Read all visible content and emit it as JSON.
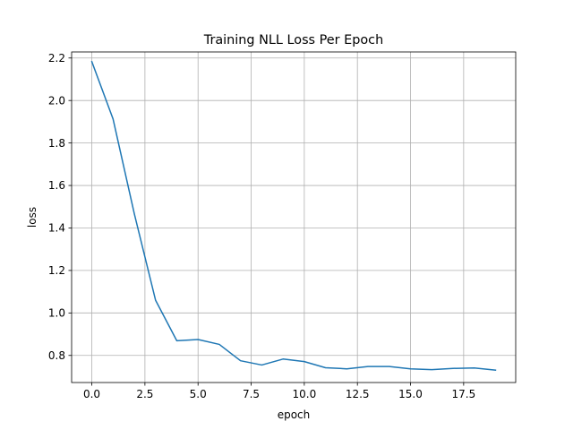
{
  "chart_data": {
    "type": "line",
    "title": "Training NLL Loss Per Epoch",
    "xlabel": "epoch",
    "ylabel": "loss",
    "xlim": [
      -0.95,
      19.95
    ],
    "ylim": [
      0.6725,
      2.2285
    ],
    "grid": true,
    "xticks": [
      0.0,
      2.5,
      5.0,
      7.5,
      10.0,
      12.5,
      15.0,
      17.5
    ],
    "xtick_labels": [
      "0.0",
      "2.5",
      "5.0",
      "7.5",
      "10.0",
      "12.5",
      "15.0",
      "17.5"
    ],
    "yticks": [
      0.8,
      1.0,
      1.2,
      1.4,
      1.6,
      1.8,
      2.0,
      2.2
    ],
    "ytick_labels": [
      "0.8",
      "1.0",
      "1.2",
      "1.4",
      "1.6",
      "1.8",
      "2.0",
      "2.2"
    ],
    "series": [
      {
        "color": "#1f77b4",
        "x": [
          0,
          1,
          2,
          3,
          4,
          5,
          6,
          7,
          8,
          9,
          10,
          11,
          12,
          13,
          14,
          15,
          16,
          17,
          18,
          19
        ],
        "y": [
          2.183,
          1.913,
          1.467,
          1.06,
          0.869,
          0.875,
          0.852,
          0.775,
          0.755,
          0.783,
          0.771,
          0.742,
          0.737,
          0.748,
          0.748,
          0.737,
          0.733,
          0.739,
          0.741,
          0.731
        ]
      }
    ]
  }
}
